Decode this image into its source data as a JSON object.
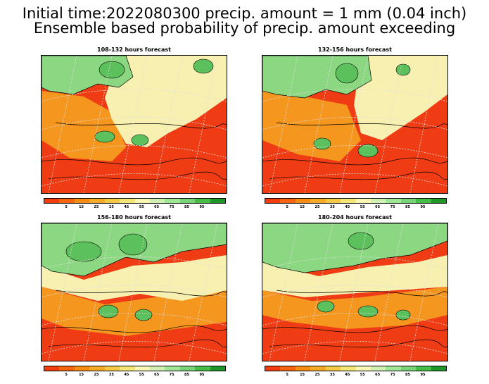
{
  "title_line1": "Initial time:2022080300 precip. amount = 1 mm (0.04 inch)",
  "title_line2": "Ensemble based probability of precip. amount exceeding",
  "panels": [
    {
      "title": "108-132 hours forecast"
    },
    {
      "title": "132-156 hours forecast"
    },
    {
      "title": "156-180 hours forecast"
    },
    {
      "title": "180-204 hours forecast"
    }
  ],
  "colorbar": {
    "colors": [
      "#f23c0f",
      "#f5640f",
      "#f58c14",
      "#f5aa28",
      "#f5c846",
      "#f5e678",
      "#f8f8b4",
      "#d2f0b4",
      "#a0e696",
      "#78d278",
      "#46be46",
      "#1e9628"
    ],
    "labels": [
      "5",
      "15",
      "25",
      "35",
      "45",
      "55",
      "65",
      "75",
      "85",
      "95"
    ]
  }
}
